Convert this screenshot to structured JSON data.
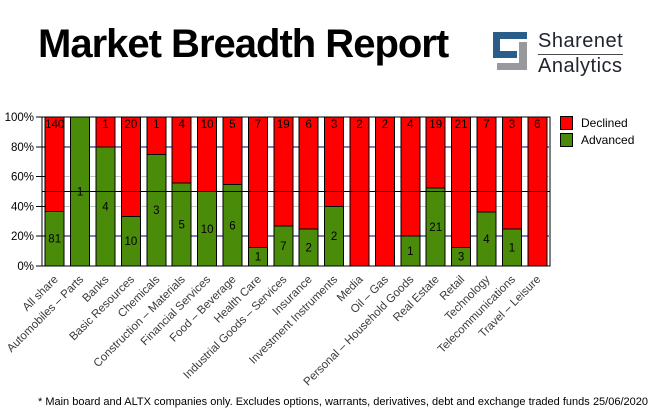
{
  "header": {
    "title": "Market Breadth Report",
    "logo": {
      "brand": "Sharenet",
      "sub": "Analytics"
    }
  },
  "legend": {
    "declined_label": "Declined",
    "advanced_label": "Advanced"
  },
  "footer": {
    "note": "* Main board and ALTX companies only. Excludes options, warrants, derivatives, debt and exchange traded funds",
    "date": "25/06/2020"
  },
  "colors": {
    "declined": "#ff0000",
    "advanced": "#4a8b0a",
    "grid_major": "#000080",
    "grid_minor": "#c6c6c6",
    "reference_line": "#000000",
    "axis": "#000000",
    "category_text": "#3a3a3a",
    "logo_blue": "#2b5d8a",
    "logo_gray": "#97999c"
  },
  "chart_data": {
    "type": "bar",
    "stacked": true,
    "normalized": "percent",
    "title": "Market Breadth Report",
    "categories": [
      "All share",
      "Automobiles – Parts",
      "Banks",
      "Basic Resources",
      "Chemicals",
      "Construction – Materials",
      "Financial Services",
      "Food – Beverage",
      "Health Care",
      "Industrial Goods – Services",
      "Insurance",
      "Investment Instruments",
      "Media",
      "Oil – Gas",
      "Personal – Household Goods",
      "Real Estate",
      "Retail",
      "Technology",
      "Telecommunications",
      "Travel – Leisure"
    ],
    "series": [
      {
        "name": "Declined",
        "color": "#ff0000",
        "values": [
          140,
          0,
          1,
          20,
          1,
          4,
          10,
          5,
          7,
          19,
          6,
          3,
          2,
          2,
          4,
          19,
          21,
          7,
          3,
          6
        ]
      },
      {
        "name": "Advanced",
        "color": "#4a8b0a",
        "values": [
          81,
          1,
          4,
          10,
          3,
          5,
          10,
          6,
          1,
          7,
          2,
          2,
          0,
          0,
          1,
          21,
          3,
          4,
          1,
          0
        ]
      }
    ],
    "y_ticks": [
      "0%",
      "20%",
      "40%",
      "60%",
      "80%",
      "100%"
    ],
    "ylim": [
      0,
      100
    ],
    "reference_line_pct": 50,
    "grid": {
      "major_pcts": [
        20,
        80
      ],
      "minor_pcts": [
        40,
        60
      ]
    },
    "legend_position": "top-right"
  }
}
